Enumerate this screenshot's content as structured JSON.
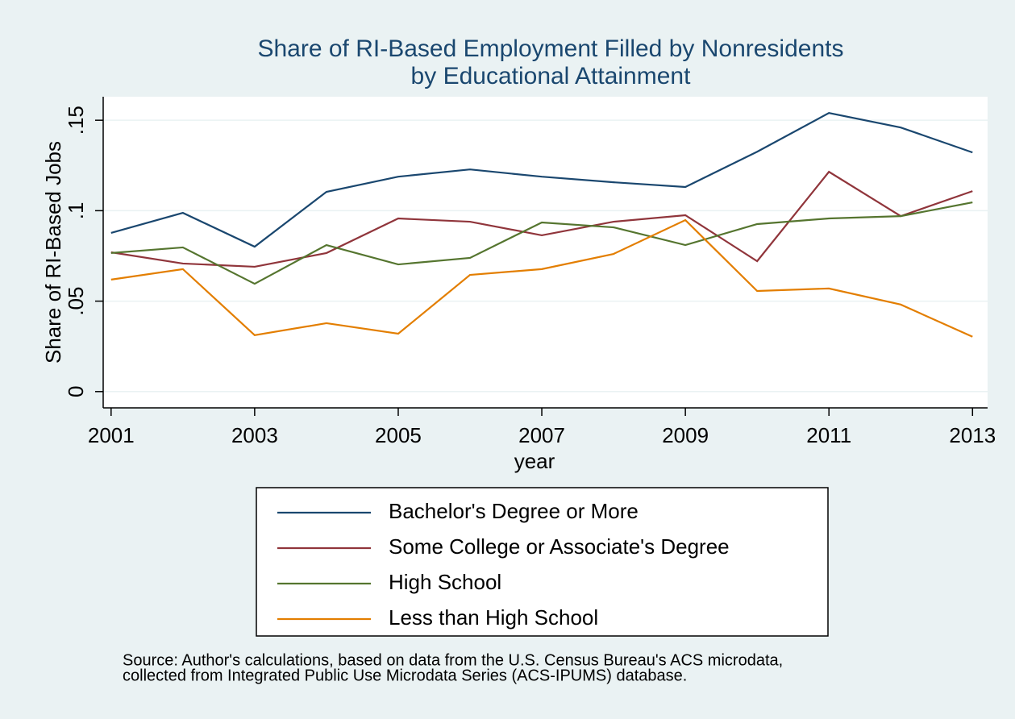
{
  "chart_data": {
    "type": "line",
    "title": [
      "Share of RI-Based Employment Filled by Nonresidents",
      "by Educational Attainment"
    ],
    "x_label": "year",
    "y_label": "Share of RI-Based Jobs",
    "x": [
      2001,
      2002,
      2003,
      2004,
      2005,
      2006,
      2007,
      2008,
      2009,
      2010,
      2011,
      2012,
      2013
    ],
    "xlim": [
      2000.89,
      2013.21
    ],
    "xticks": [
      2001,
      2003,
      2005,
      2007,
      2009,
      2011,
      2013
    ],
    "ylim": [
      -0.009,
      0.163
    ],
    "yticks": [
      0,
      {
        "value": 0.05,
        "label": ".05"
      },
      {
        "value": 0.1,
        "label": ".1"
      },
      {
        "value": 0.15,
        "label": ".15"
      }
    ],
    "grid": true,
    "legend": "bottom",
    "series": [
      {
        "name": "Bachelor's Degree or More",
        "color": "#1a476f",
        "values": [
          0.0877,
          0.0988,
          0.0801,
          0.1104,
          0.1188,
          0.1228,
          0.1188,
          0.1157,
          0.1131,
          0.1326,
          0.154,
          0.146,
          0.1322
        ]
      },
      {
        "name": "Some College or Associate's Degree",
        "color": "#90353b",
        "values": [
          0.077,
          0.0708,
          0.069,
          0.0766,
          0.0957,
          0.0939,
          0.0864,
          0.0939,
          0.0975,
          0.0721,
          0.1215,
          0.097,
          0.1108
        ]
      },
      {
        "name": "High School",
        "color": "#55752f",
        "values": [
          0.0766,
          0.0797,
          0.0596,
          0.081,
          0.0703,
          0.0739,
          0.0935,
          0.0908,
          0.081,
          0.0926,
          0.0957,
          0.097,
          0.1046
        ]
      },
      {
        "name": "Less than High School",
        "color": "#e37e00",
        "values": [
          0.0619,
          0.0677,
          0.0312,
          0.0378,
          0.032,
          0.0645,
          0.0677,
          0.0761,
          0.0948,
          0.0556,
          0.057,
          0.0481,
          0.0303
        ]
      }
    ],
    "note": [
      "Source: Author's calculations, based on data from the U.S. Census Bureau's ACS microdata,",
      "collected from Integrated Public Use Microdata Series (ACS-IPUMS) database."
    ]
  }
}
